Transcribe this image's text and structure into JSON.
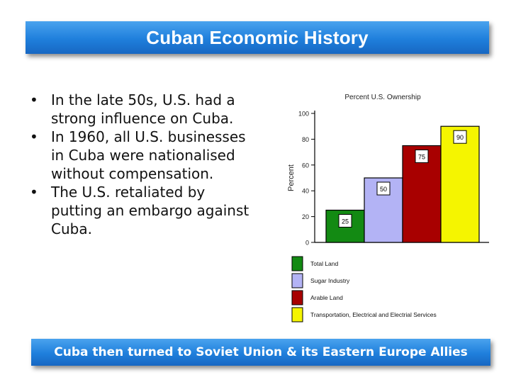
{
  "slide": {
    "title": "Cuban Economic History",
    "bullets": [
      "In the late 50s, U.S. had a strong influence on Cuba.",
      "In 1960, all U.S. businesses in Cuba were nationalised without compensation.",
      "The U.S. retaliated by putting an embargo against Cuba."
    ],
    "footer": "Cuba then turned to Soviet Union & its Eastern Europe Allies"
  },
  "chart_data": {
    "type": "bar",
    "title": "Percent U.S. Ownership",
    "ylabel": "Percent",
    "xlabel": "",
    "ylim": [
      0,
      100
    ],
    "yticks": [
      0,
      20,
      40,
      60,
      80,
      100
    ],
    "grid": false,
    "legend_position": "bottom",
    "categories": [
      "Total Land",
      "Sugar Industry",
      "Arable Land",
      "Transportation, Electrical and Electrial Services"
    ],
    "values": [
      25,
      50,
      75,
      90
    ],
    "colors": [
      "#138a13",
      "#b3b3f5",
      "#a80000",
      "#f5f500"
    ]
  }
}
